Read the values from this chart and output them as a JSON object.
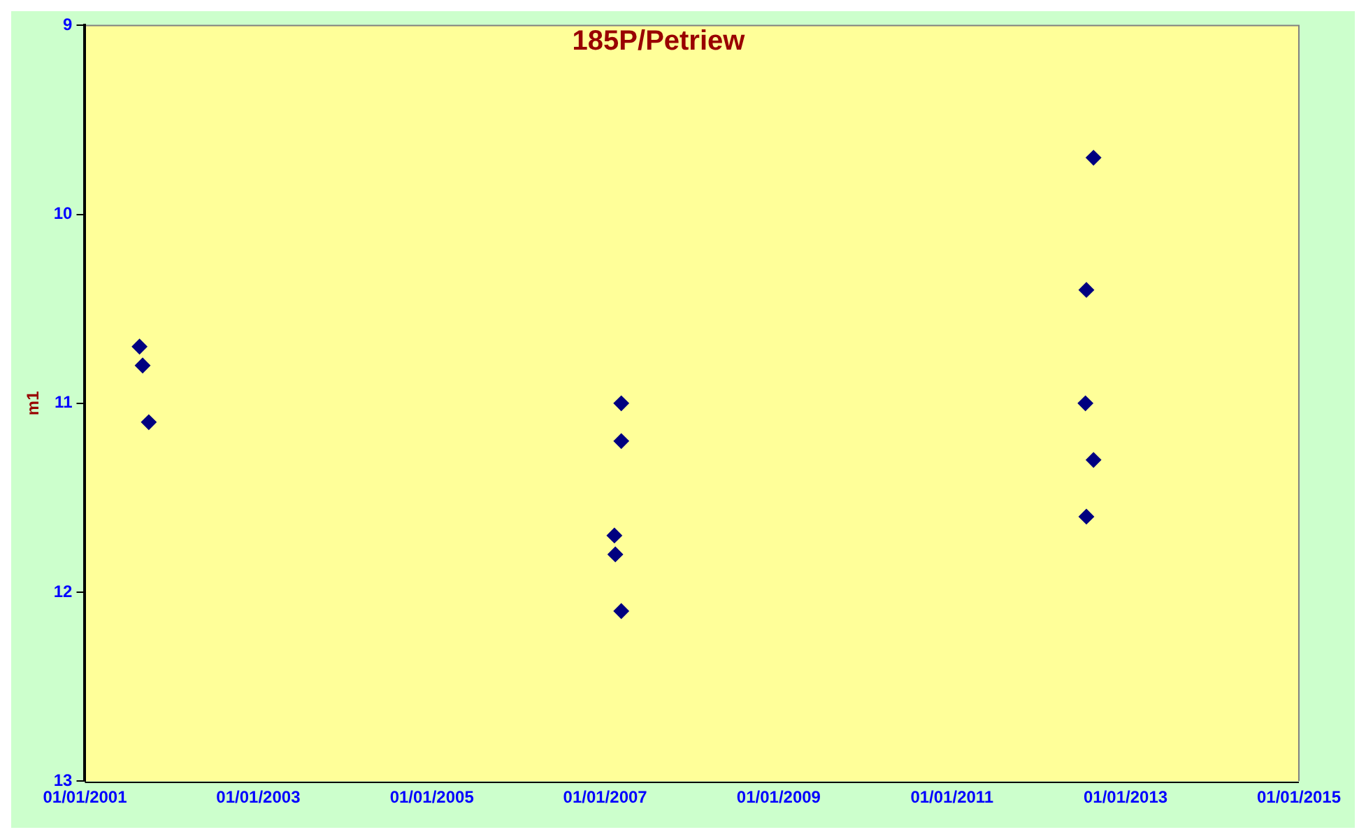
{
  "chart_data": {
    "type": "scatter",
    "title": "185P/Petriew",
    "ylabel": "m1",
    "series": [
      {
        "color": "#000080",
        "x": [
          "2001-08-19",
          "2001-09-01",
          "2001-09-27",
          "2007-02-09",
          "2007-02-13",
          "2007-03-10",
          "2007-03-10",
          "2007-03-10",
          "2012-08-19",
          "2012-07-20",
          "2012-07-16",
          "2012-08-19",
          "2012-07-20"
        ],
        "values": [
          10.7,
          10.8,
          11.1,
          11.7,
          11.8,
          11.0,
          11.2,
          12.1,
          9.7,
          10.4,
          11.0,
          11.3,
          11.6
        ]
      }
    ],
    "xlim": [
      "2001-01-01",
      "2015-01-01"
    ],
    "xticks": [
      {
        "value": "2001-01-01",
        "label": "01/01/2001"
      },
      {
        "value": "2003-01-01",
        "label": "01/01/2003"
      },
      {
        "value": "2005-01-01",
        "label": "01/01/2005"
      },
      {
        "value": "2007-01-01",
        "label": "01/01/2007"
      },
      {
        "value": "2009-01-01",
        "label": "01/01/2009"
      },
      {
        "value": "2011-01-01",
        "label": "01/01/2011"
      },
      {
        "value": "2013-01-01",
        "label": "01/01/2013"
      },
      {
        "value": "2015-01-01",
        "label": "01/01/2015"
      }
    ],
    "ylim": [
      13,
      9
    ],
    "yticks": [
      9,
      10,
      11,
      12,
      13
    ],
    "grid": false,
    "legend": false,
    "marker": "diamond"
  }
}
